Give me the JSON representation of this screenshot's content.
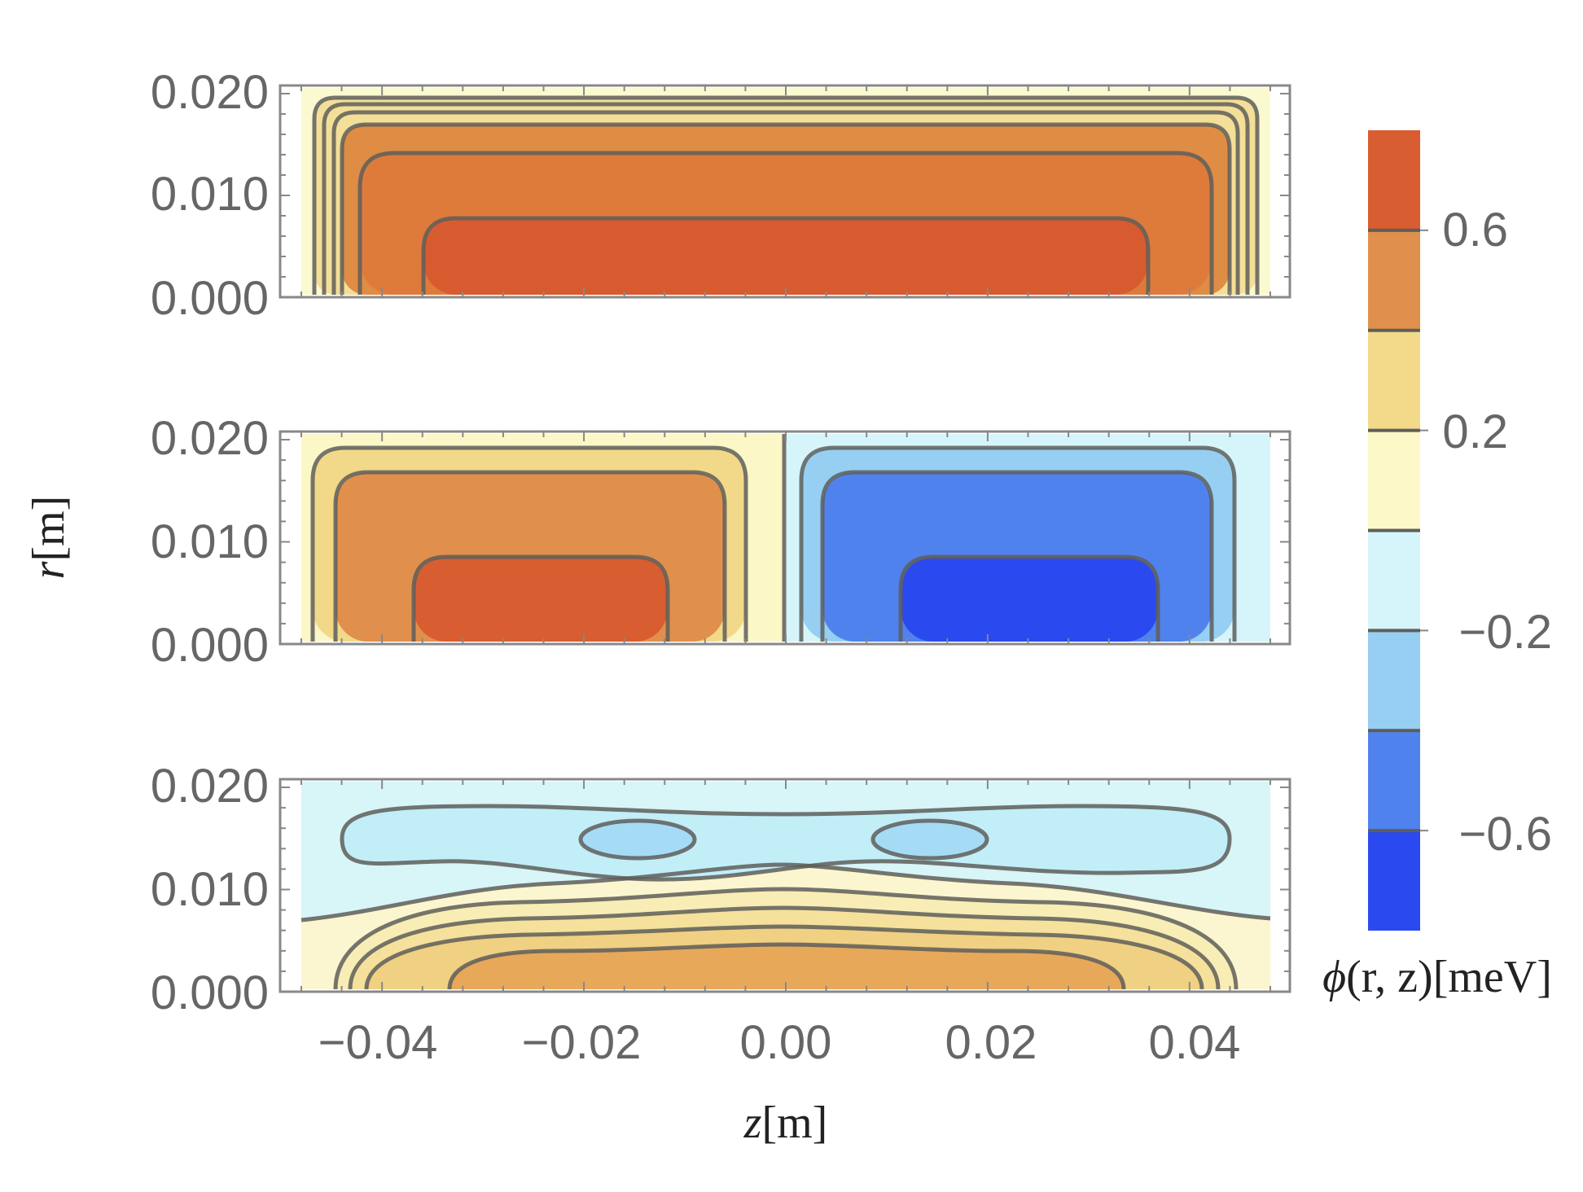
{
  "chart_data": [
    {
      "type": "contour",
      "panel": "top",
      "description_mode": "single-sign",
      "xlim": [
        -0.048,
        0.048
      ],
      "ylim": [
        0.0,
        0.021
      ],
      "yticks": [
        "0.000",
        "0.010",
        "0.020"
      ],
      "contour_levels": [
        0.1,
        0.2,
        0.3,
        0.4,
        0.5,
        0.6
      ],
      "max_value": 0.7
    },
    {
      "type": "contour",
      "panel": "middle",
      "description_mode": "antisymmetric",
      "xlim": [
        -0.048,
        0.048
      ],
      "ylim": [
        0.0,
        0.021
      ],
      "yticks": [
        "0.000",
        "0.010",
        "0.020"
      ],
      "contour_levels": [
        -0.6,
        -0.4,
        -0.2,
        0.0,
        0.2,
        0.4,
        0.6
      ],
      "max_value": 0.7
    },
    {
      "type": "contour",
      "panel": "bottom",
      "description_mode": "oscillatory",
      "xlim": [
        -0.048,
        0.048
      ],
      "ylim": [
        0.0,
        0.021
      ],
      "yticks": [
        "0.000",
        "0.010",
        "0.020"
      ],
      "contour_levels": [
        -0.3,
        -0.2,
        0.0,
        0.1,
        0.2,
        0.3,
        0.4
      ],
      "extrema": [
        {
          "z": -0.015,
          "r": 0.014,
          "value": -0.3
        },
        {
          "z": 0.015,
          "r": 0.014,
          "value": -0.3
        }
      ]
    }
  ],
  "axes": {
    "xticks": [
      "−0.04",
      "−0.02",
      "0.00",
      "0.02",
      "0.04"
    ],
    "xtick_values": [
      -0.04,
      -0.02,
      0.0,
      0.02,
      0.04
    ],
    "xlabel_var": "z",
    "xlabel_unit": "[m]",
    "ylabel_var": "r",
    "ylabel_unit": "[m]"
  },
  "colorbar": {
    "label_phi": "ϕ",
    "label_args": "(r, z)",
    "label_unit": "[meV]",
    "tick_labels": [
      "0.6",
      "0.2",
      "−0.2",
      "−0.6"
    ],
    "tick_values": [
      0.6,
      0.2,
      -0.2,
      -0.6
    ],
    "bands": [
      {
        "from": 0.6,
        "to": 0.8,
        "color": "#d85d30"
      },
      {
        "from": 0.4,
        "to": 0.6,
        "color": "#e0904c"
      },
      {
        "from": 0.2,
        "to": 0.4,
        "color": "#f3d98a"
      },
      {
        "from": 0.0,
        "to": 0.2,
        "color": "#fcf8c8"
      },
      {
        "from": -0.2,
        "to": 0.0,
        "color": "#d5f5fa"
      },
      {
        "from": -0.4,
        "to": -0.2,
        "color": "#96cff2"
      },
      {
        "from": -0.6,
        "to": -0.4,
        "color": "#5082ee"
      },
      {
        "from": -0.8,
        "to": -0.6,
        "color": "#2a4af0"
      }
    ]
  },
  "colors": {
    "top_bg": "#fbf9d0",
    "top_l1": "#f3df98",
    "top_l2": "#df8c44",
    "top_l3": "#de7b3b",
    "top_l4": "#d85b2f",
    "mid_pos_bg": "#fcf7c7",
    "mid_pos_l1": "#f2d98a",
    "mid_pos_l2": "#e0904c",
    "mid_pos_l3": "#d85d30",
    "mid_neg_bg": "#d6f5fa",
    "mid_neg_l1": "#96cff2",
    "mid_neg_l2": "#5082ee",
    "mid_neg_l3": "#2a4af0",
    "bot_top_bg": "#d8f5f7",
    "bot_blue1": "#c2eef8",
    "bot_blue2": "#a6dbf6",
    "bot_y0": "#fbf6cf",
    "bot_y1": "#f8edb5",
    "bot_y2": "#f5e19c",
    "bot_y3": "#f0d082",
    "bot_o": "#e7a85a",
    "contour": "#5e5e5a"
  }
}
